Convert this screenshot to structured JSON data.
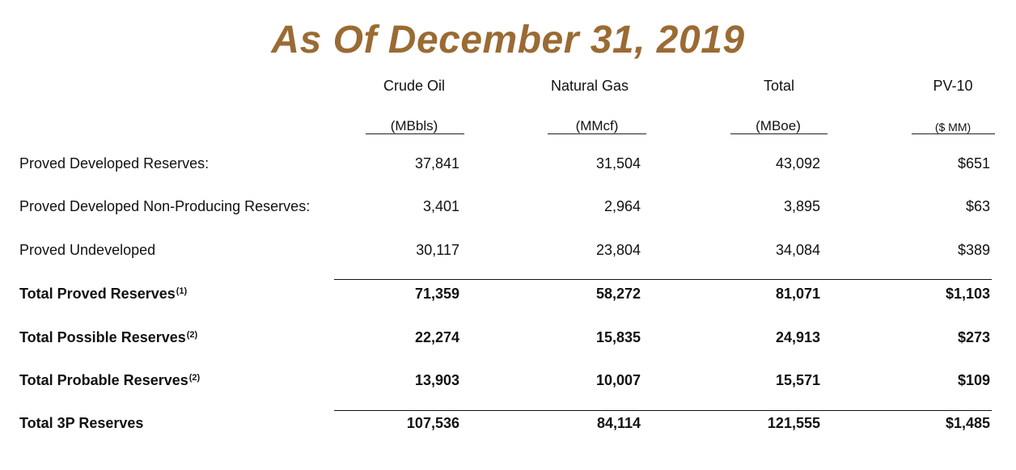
{
  "title": "As Of December 31, 2019",
  "columns": [
    {
      "label": "Crude Oil",
      "unit": "(MBbls)"
    },
    {
      "label": "Natural Gas",
      "unit": "(MMcf)"
    },
    {
      "label": "Total",
      "unit": "(MBoe)"
    },
    {
      "label": "PV-10",
      "unit": "($ MM)"
    }
  ],
  "rows": [
    {
      "label": "Proved Developed Reserves:",
      "note": "",
      "bold": false,
      "values": [
        "37,841",
        "31,504",
        "43,092",
        "$651"
      ]
    },
    {
      "label": "Proved Developed Non-Producing Reserves:",
      "note": "",
      "bold": false,
      "values": [
        "3,401",
        "2,964",
        "3,895",
        "$63"
      ]
    },
    {
      "label": "Proved Undeveloped",
      "note": "",
      "bold": false,
      "values": [
        "30,117",
        "23,804",
        "34,084",
        "$389"
      ]
    },
    {
      "label": "Total Proved Reserves",
      "note": "(1)",
      "bold": true,
      "values": [
        "71,359",
        "58,272",
        "81,071",
        "$1,103"
      ]
    },
    {
      "label": "Total Possible Reserves",
      "note": "(2)",
      "bold": true,
      "values": [
        "22,274",
        "15,835",
        "24,913",
        "$273"
      ]
    },
    {
      "label": "Total Probable Reserves",
      "note": "(2)",
      "bold": true,
      "values": [
        "13,903",
        "10,007",
        "15,571",
        "$109"
      ]
    },
    {
      "label": "Total 3P Reserves",
      "note": "",
      "bold": true,
      "values": [
        "107,536",
        "84,114",
        "121,555",
        "$1,485"
      ]
    }
  ],
  "colors": {
    "title": "#9a6b33",
    "text": "#111111"
  }
}
